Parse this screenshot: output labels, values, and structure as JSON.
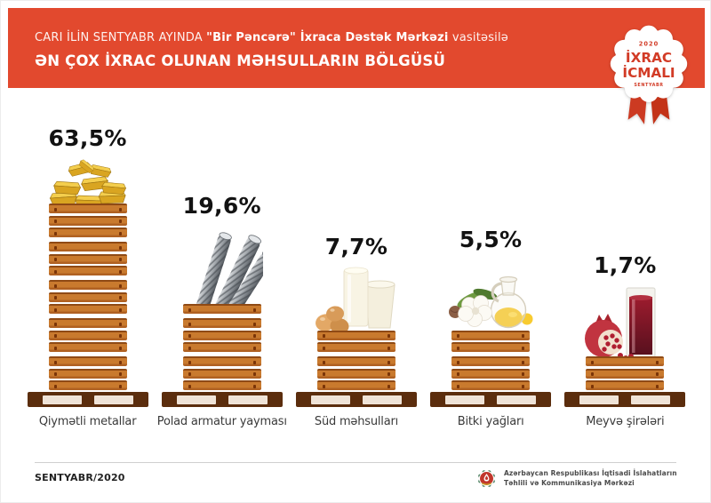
{
  "header": {
    "line1_regular": "CARI İLİN SENTYABR AYINDA ",
    "line1_bold": "\"Bir Pəncərə\" İxraca Dəstək Mərkəzi",
    "line1_suffix": " vasitəsilə",
    "line2": "ƏN ÇOX İXRAC OLUNAN MƏHSULLARIN BÖLGÜSÜ"
  },
  "badge": {
    "year": "2020",
    "line1": "İXRAC",
    "line2": "İCMALI",
    "month": "SENTYABR"
  },
  "chart_data": {
    "type": "bar",
    "title": "ƏN ÇOX İXRAC OLUNAN MƏHSULLARIN BÖLGÜSÜ",
    "subtitle": "CARI İLİN SENTYABR AYINDA \"Bir Pəncərə\" İxraca Dəstək Mərkəzi vasitəsilə",
    "unit": "%",
    "categories": [
      "Qiymətli metallar",
      "Polad armatur yayması",
      "Süd məhsulları",
      "Bitki yağları",
      "Meyvə şirələri"
    ],
    "values": [
      63.5,
      19.6,
      7.7,
      5.5,
      1.7
    ],
    "value_labels": [
      "63,5%",
      "19,6%",
      "7,7%",
      "5,5%",
      "1,7%"
    ],
    "layout": {
      "bar_style": "wooden-crates-on-pallet",
      "value_label_position": "above",
      "grid": false,
      "legend": false
    },
    "items": [
      {
        "label": "Qiymətli metallar",
        "value": 63.5,
        "value_label": "63,5%",
        "icon": "gold-bars",
        "planks": 15
      },
      {
        "label": "Polad armatur yayması",
        "value": 19.6,
        "value_label": "19,6%",
        "icon": "steel-rebar",
        "planks": 7
      },
      {
        "label": "Süd məhsulları",
        "value": 7.7,
        "value_label": "7,7%",
        "icon": "dairy",
        "planks": 5
      },
      {
        "label": "Bitki yağları",
        "value": 5.5,
        "value_label": "5,5%",
        "icon": "vegetable-oil",
        "planks": 5
      },
      {
        "label": "Meyvə şirələri",
        "value": 1.7,
        "value_label": "1,7%",
        "icon": "fruit-juice",
        "planks": 3
      }
    ]
  },
  "footer": {
    "date": "SENTYABR/2020",
    "org_line1": "Azərbaycan Respublikası İqtisadi İslahatların",
    "org_line2": "Təhlili və Kommunikasiya Mərkəzi"
  },
  "colors": {
    "header_red": "#E2492E",
    "badge_red": "#D23B26",
    "crate_orange": "#C97A2E",
    "pallet_brown": "#5B2D0D",
    "pallet_slat": "#EFE3D7",
    "value_text": "#121212",
    "category_text": "#3A3A3A"
  }
}
